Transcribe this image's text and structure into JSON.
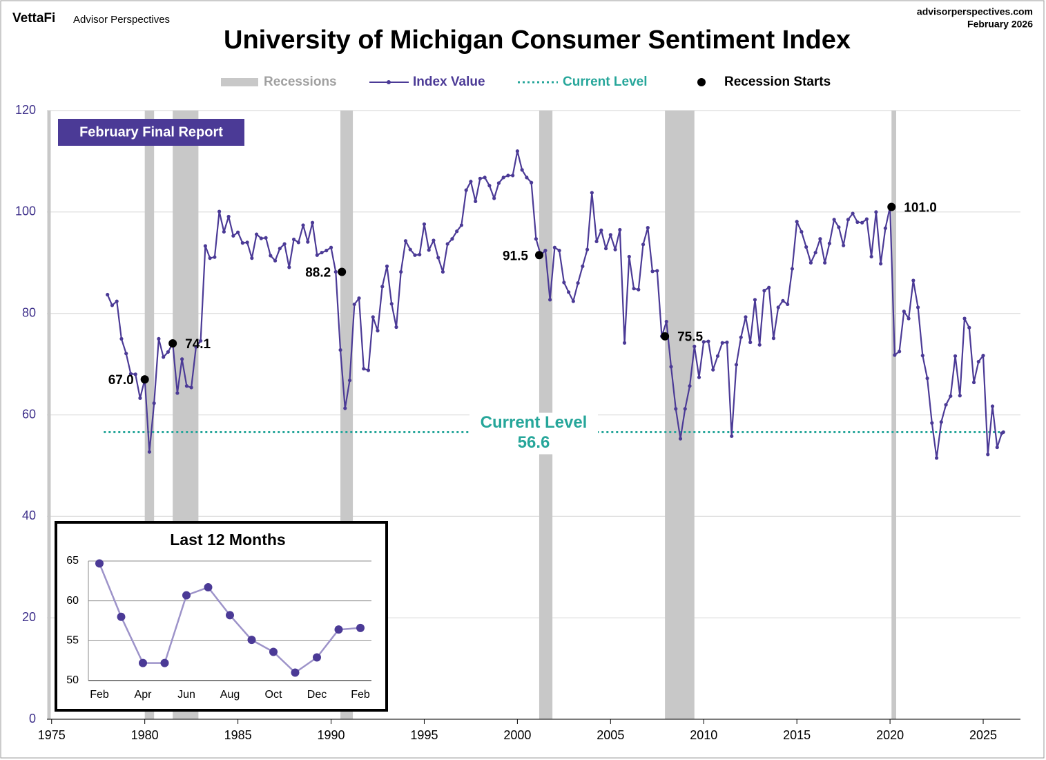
{
  "header": {
    "brand": "VettaFi",
    "publisher": "Advisor Perspectives",
    "site": "advisorperspectives.com",
    "date": "February 2026"
  },
  "badge": "February Final Report",
  "chart_data": [
    {
      "type": "line",
      "title": "University of Michigan Consumer Sentiment Index",
      "x": [
        1978,
        1978.25,
        1978.5,
        1978.75,
        1979,
        1979.25,
        1979.5,
        1979.75,
        1980,
        1980.25,
        1980.5,
        1980.75,
        1981,
        1981.25,
        1981.5,
        1981.75,
        1982,
        1982.25,
        1982.5,
        1982.75,
        1983,
        1983.25,
        1983.5,
        1983.75,
        1984,
        1984.25,
        1984.5,
        1984.75,
        1985,
        1985.25,
        1985.5,
        1985.75,
        1986,
        1986.25,
        1986.5,
        1986.75,
        1987,
        1987.25,
        1987.5,
        1987.75,
        1988,
        1988.25,
        1988.5,
        1988.75,
        1989,
        1989.25,
        1989.5,
        1989.75,
        1990,
        1990.25,
        1990.5,
        1990.75,
        1991,
        1991.25,
        1991.5,
        1991.75,
        1992,
        1992.25,
        1992.5,
        1992.75,
        1993,
        1993.25,
        1993.5,
        1993.75,
        1994,
        1994.25,
        1994.5,
        1994.75,
        1995,
        1995.25,
        1995.5,
        1995.75,
        1996,
        1996.25,
        1996.5,
        1996.75,
        1997,
        1997.25,
        1997.5,
        1997.75,
        1998,
        1998.25,
        1998.5,
        1998.75,
        1999,
        1999.25,
        1999.5,
        1999.75,
        2000,
        2000.25,
        2000.5,
        2000.75,
        2001,
        2001.25,
        2001.5,
        2001.75,
        2002,
        2002.25,
        2002.5,
        2002.75,
        2003,
        2003.25,
        2003.5,
        2003.75,
        2004,
        2004.25,
        2004.5,
        2004.75,
        2005,
        2005.25,
        2005.5,
        2005.75,
        2006,
        2006.25,
        2006.5,
        2006.75,
        2007,
        2007.25,
        2007.5,
        2007.75,
        2008,
        2008.25,
        2008.5,
        2008.75,
        2009,
        2009.25,
        2009.5,
        2009.75,
        2010,
        2010.25,
        2010.5,
        2010.75,
        2011,
        2011.25,
        2011.5,
        2011.75,
        2012,
        2012.25,
        2012.5,
        2012.75,
        2013,
        2013.25,
        2013.5,
        2013.75,
        2014,
        2014.25,
        2014.5,
        2014.75,
        2015,
        2015.25,
        2015.5,
        2015.75,
        2016,
        2016.25,
        2016.5,
        2016.75,
        2017,
        2017.25,
        2017.5,
        2017.75,
        2018,
        2018.25,
        2018.5,
        2018.75,
        2019,
        2019.25,
        2019.5,
        2019.75,
        2020,
        2020.25,
        2020.5,
        2020.75,
        2021,
        2021.25,
        2021.5,
        2021.75,
        2022,
        2022.25,
        2022.5,
        2022.75,
        2023,
        2023.25,
        2023.5,
        2023.75,
        2024,
        2024.25,
        2024.5,
        2024.75,
        2025,
        2025.25,
        2025.5,
        2025.75,
        2026,
        2026.083
      ],
      "series": [
        {
          "name": "Index Value",
          "color": "#4b3a96",
          "values": [
            83.7,
            81.6,
            82.4,
            75.0,
            72.1,
            68.1,
            68.0,
            63.3,
            67.0,
            52.7,
            62.3,
            75.0,
            71.4,
            72.4,
            74.1,
            64.3,
            71.0,
            65.7,
            65.4,
            73.4,
            74.6,
            93.3,
            90.9,
            91.1,
            100.1,
            96.1,
            99.1,
            95.3,
            96.0,
            93.9,
            94.0,
            90.9,
            95.6,
            94.8,
            94.9,
            91.4,
            90.4,
            92.8,
            93.7,
            89.1,
            94.6,
            94.0,
            97.4,
            94.1,
            97.9,
            91.5,
            92.0,
            92.4,
            93.0,
            88.2,
            72.8,
            61.3,
            66.8,
            81.8,
            83.0,
            69.1,
            68.8,
            79.3,
            76.6,
            85.3,
            89.3,
            81.9,
            77.3,
            88.2,
            94.3,
            92.6,
            91.5,
            91.6,
            97.6,
            92.5,
            94.4,
            91.0,
            88.2,
            93.7,
            94.7,
            96.2,
            97.4,
            104.3,
            106.0,
            102.1,
            106.6,
            106.8,
            105.2,
            102.7,
            105.7,
            106.8,
            107.2,
            107.2,
            112.0,
            108.3,
            106.8,
            105.8,
            94.7,
            91.5,
            92.4,
            82.7,
            93.0,
            92.4,
            86.1,
            84.2,
            82.4,
            86.0,
            89.3,
            92.6,
            103.8,
            94.2,
            96.4,
            92.8,
            95.5,
            92.6,
            96.5,
            74.2,
            91.2,
            84.9,
            84.7,
            93.6,
            96.9,
            88.3,
            88.4,
            75.5,
            78.4,
            69.5,
            61.2,
            55.3,
            61.2,
            65.7,
            73.5,
            67.4,
            74.4,
            74.5,
            68.9,
            71.6,
            74.2,
            74.3,
            55.8,
            69.9,
            75.3,
            79.3,
            74.3,
            82.7,
            73.8,
            84.5,
            85.1,
            75.1,
            81.2,
            82.5,
            81.8,
            88.8,
            98.1,
            96.1,
            93.1,
            90.0,
            92.0,
            94.7,
            90.0,
            93.8,
            98.5,
            97.0,
            93.4,
            98.5,
            99.7,
            98.0,
            97.9,
            98.6,
            91.2,
            100.0,
            89.8,
            96.8,
            101.0,
            71.8,
            72.5,
            80.4,
            79.0,
            86.5,
            81.2,
            71.7,
            67.2,
            58.4,
            51.5,
            58.6,
            62.0,
            63.7,
            71.6,
            63.8,
            79.0,
            77.2,
            66.4,
            70.5,
            71.7,
            52.2,
            61.7,
            53.6,
            56.4,
            56.6
          ]
        }
      ],
      "xlim": [
        1974.75,
        2027
      ],
      "ylim": [
        0,
        120
      ],
      "xticks": [
        1975,
        1980,
        1985,
        1990,
        1995,
        2000,
        2005,
        2010,
        2015,
        2020,
        2025
      ],
      "yticks": [
        0,
        20,
        40,
        60,
        80,
        100,
        120
      ],
      "grid": true,
      "recessions": {
        "name": "Recessions",
        "color": "#c8c8c8",
        "spans": [
          [
            1980.0,
            1980.5
          ],
          [
            1981.5,
            1982.88
          ],
          [
            1990.5,
            1991.17
          ],
          [
            2001.17,
            2001.88
          ],
          [
            2007.92,
            2009.5
          ],
          [
            2020.08,
            2020.33
          ]
        ]
      },
      "current_level": {
        "name": "Current Level",
        "color": "#26a69a",
        "value": 56.6
      },
      "recession_starts": {
        "name": "Recession Starts",
        "color": "#000000",
        "x": [
          1980.0,
          1981.5,
          1990.58,
          2001.17,
          2007.92,
          2020.08
        ],
        "values": [
          67,
          74.1,
          88.2,
          91.5,
          75.5,
          101
        ],
        "value_labels": [
          "67.0",
          "74.1",
          "88.2",
          "91.5",
          "75.5",
          "101.0"
        ]
      }
    },
    {
      "type": "line",
      "title": "Last 12 Months",
      "categories": [
        "Feb",
        null,
        "Apr",
        null,
        "Jun",
        null,
        "Aug",
        null,
        "Oct",
        null,
        "Dec",
        null,
        "Feb"
      ],
      "values": [
        64.7,
        58.0,
        52.2,
        52.2,
        60.7,
        61.7,
        58.2,
        55.1,
        53.6,
        51.0,
        52.9,
        56.4,
        56.6
      ],
      "color": "#9d93c9",
      "marker_color": "#4b3a96",
      "ylim": [
        50,
        65
      ],
      "yticks": [
        50,
        55,
        60,
        65
      ],
      "grid": true
    }
  ]
}
